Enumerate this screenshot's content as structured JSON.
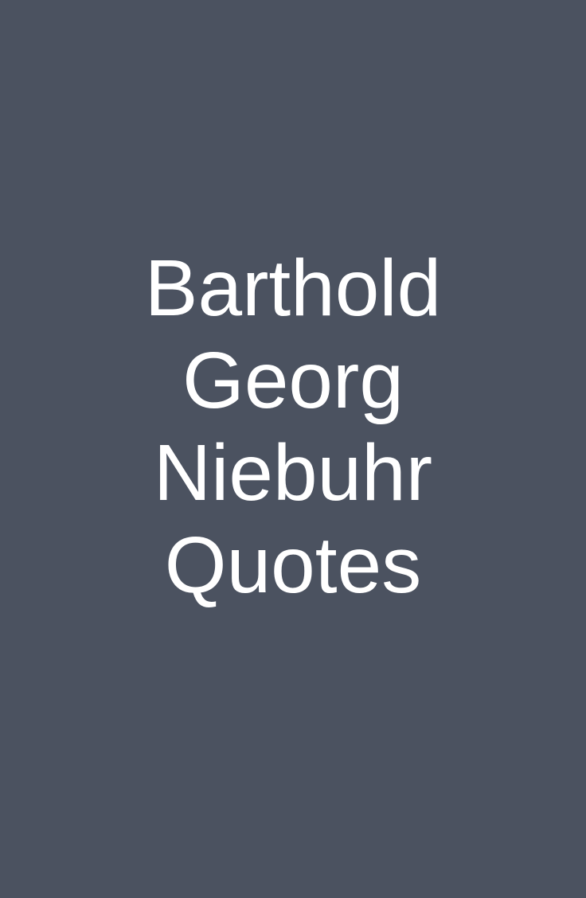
{
  "colors": {
    "background": "#4b5260",
    "text": "#ffffff"
  },
  "title": {
    "lines": [
      "Barthold",
      "Georg",
      "Niebuhr",
      "Quotes"
    ]
  }
}
